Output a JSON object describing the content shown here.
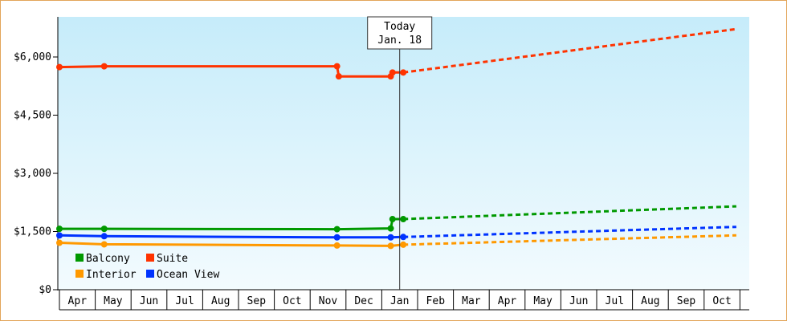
{
  "chart_data": {
    "type": "line",
    "ylim": [
      0,
      6000
    ],
    "yticks": [
      "$0",
      "$1,500",
      "$3,000",
      "$4,500",
      "$6,000"
    ],
    "ytick_values": [
      0,
      1500,
      3000,
      4500,
      6000
    ],
    "xtick_labels": [
      "Apr",
      "May",
      "Jun",
      "Jul",
      "Aug",
      "Sep",
      "Oct",
      "Nov",
      "Dec",
      "Jan",
      "Feb",
      "Mar",
      "Apr",
      "May",
      "Jun",
      "Jul",
      "Aug",
      "Sep",
      "Oct"
    ],
    "today_marker": {
      "line1": "Today",
      "line2": "Jan. 18",
      "x": 9.5
    },
    "x_unit": "months since Apr",
    "series": [
      {
        "name": "Suite",
        "color": "#ff3300",
        "points": [
          [
            0,
            5740
          ],
          [
            1.25,
            5760
          ],
          [
            7.75,
            5760
          ],
          [
            7.8,
            5500
          ],
          [
            9.25,
            5500
          ],
          [
            9.3,
            5600
          ],
          [
            9.6,
            5600
          ]
        ],
        "forecast": [
          [
            9.6,
            5600
          ],
          [
            18.9,
            6720
          ]
        ]
      },
      {
        "name": "Balcony",
        "color": "#009900",
        "points": [
          [
            0,
            1570
          ],
          [
            1.25,
            1570
          ],
          [
            7.75,
            1560
          ],
          [
            9.25,
            1580
          ],
          [
            9.3,
            1820
          ],
          [
            9.6,
            1820
          ]
        ],
        "forecast": [
          [
            9.6,
            1820
          ],
          [
            18.9,
            2150
          ]
        ]
      },
      {
        "name": "Ocean View",
        "color": "#0033ff",
        "points": [
          [
            0,
            1400
          ],
          [
            1.25,
            1380
          ],
          [
            7.75,
            1350
          ],
          [
            9.25,
            1350
          ],
          [
            9.6,
            1360
          ]
        ],
        "forecast": [
          [
            9.6,
            1360
          ],
          [
            18.9,
            1620
          ]
        ]
      },
      {
        "name": "Interior",
        "color": "#ff9900",
        "points": [
          [
            0,
            1210
          ],
          [
            1.25,
            1170
          ],
          [
            7.75,
            1140
          ],
          [
            9.25,
            1130
          ],
          [
            9.6,
            1160
          ]
        ],
        "forecast": [
          [
            9.6,
            1160
          ],
          [
            18.9,
            1400
          ]
        ]
      }
    ],
    "legend": {
      "placement": "bottom-left",
      "rows": [
        [
          "Balcony",
          "Suite"
        ],
        [
          "Interior",
          "Ocean View"
        ]
      ]
    },
    "grid": false
  }
}
